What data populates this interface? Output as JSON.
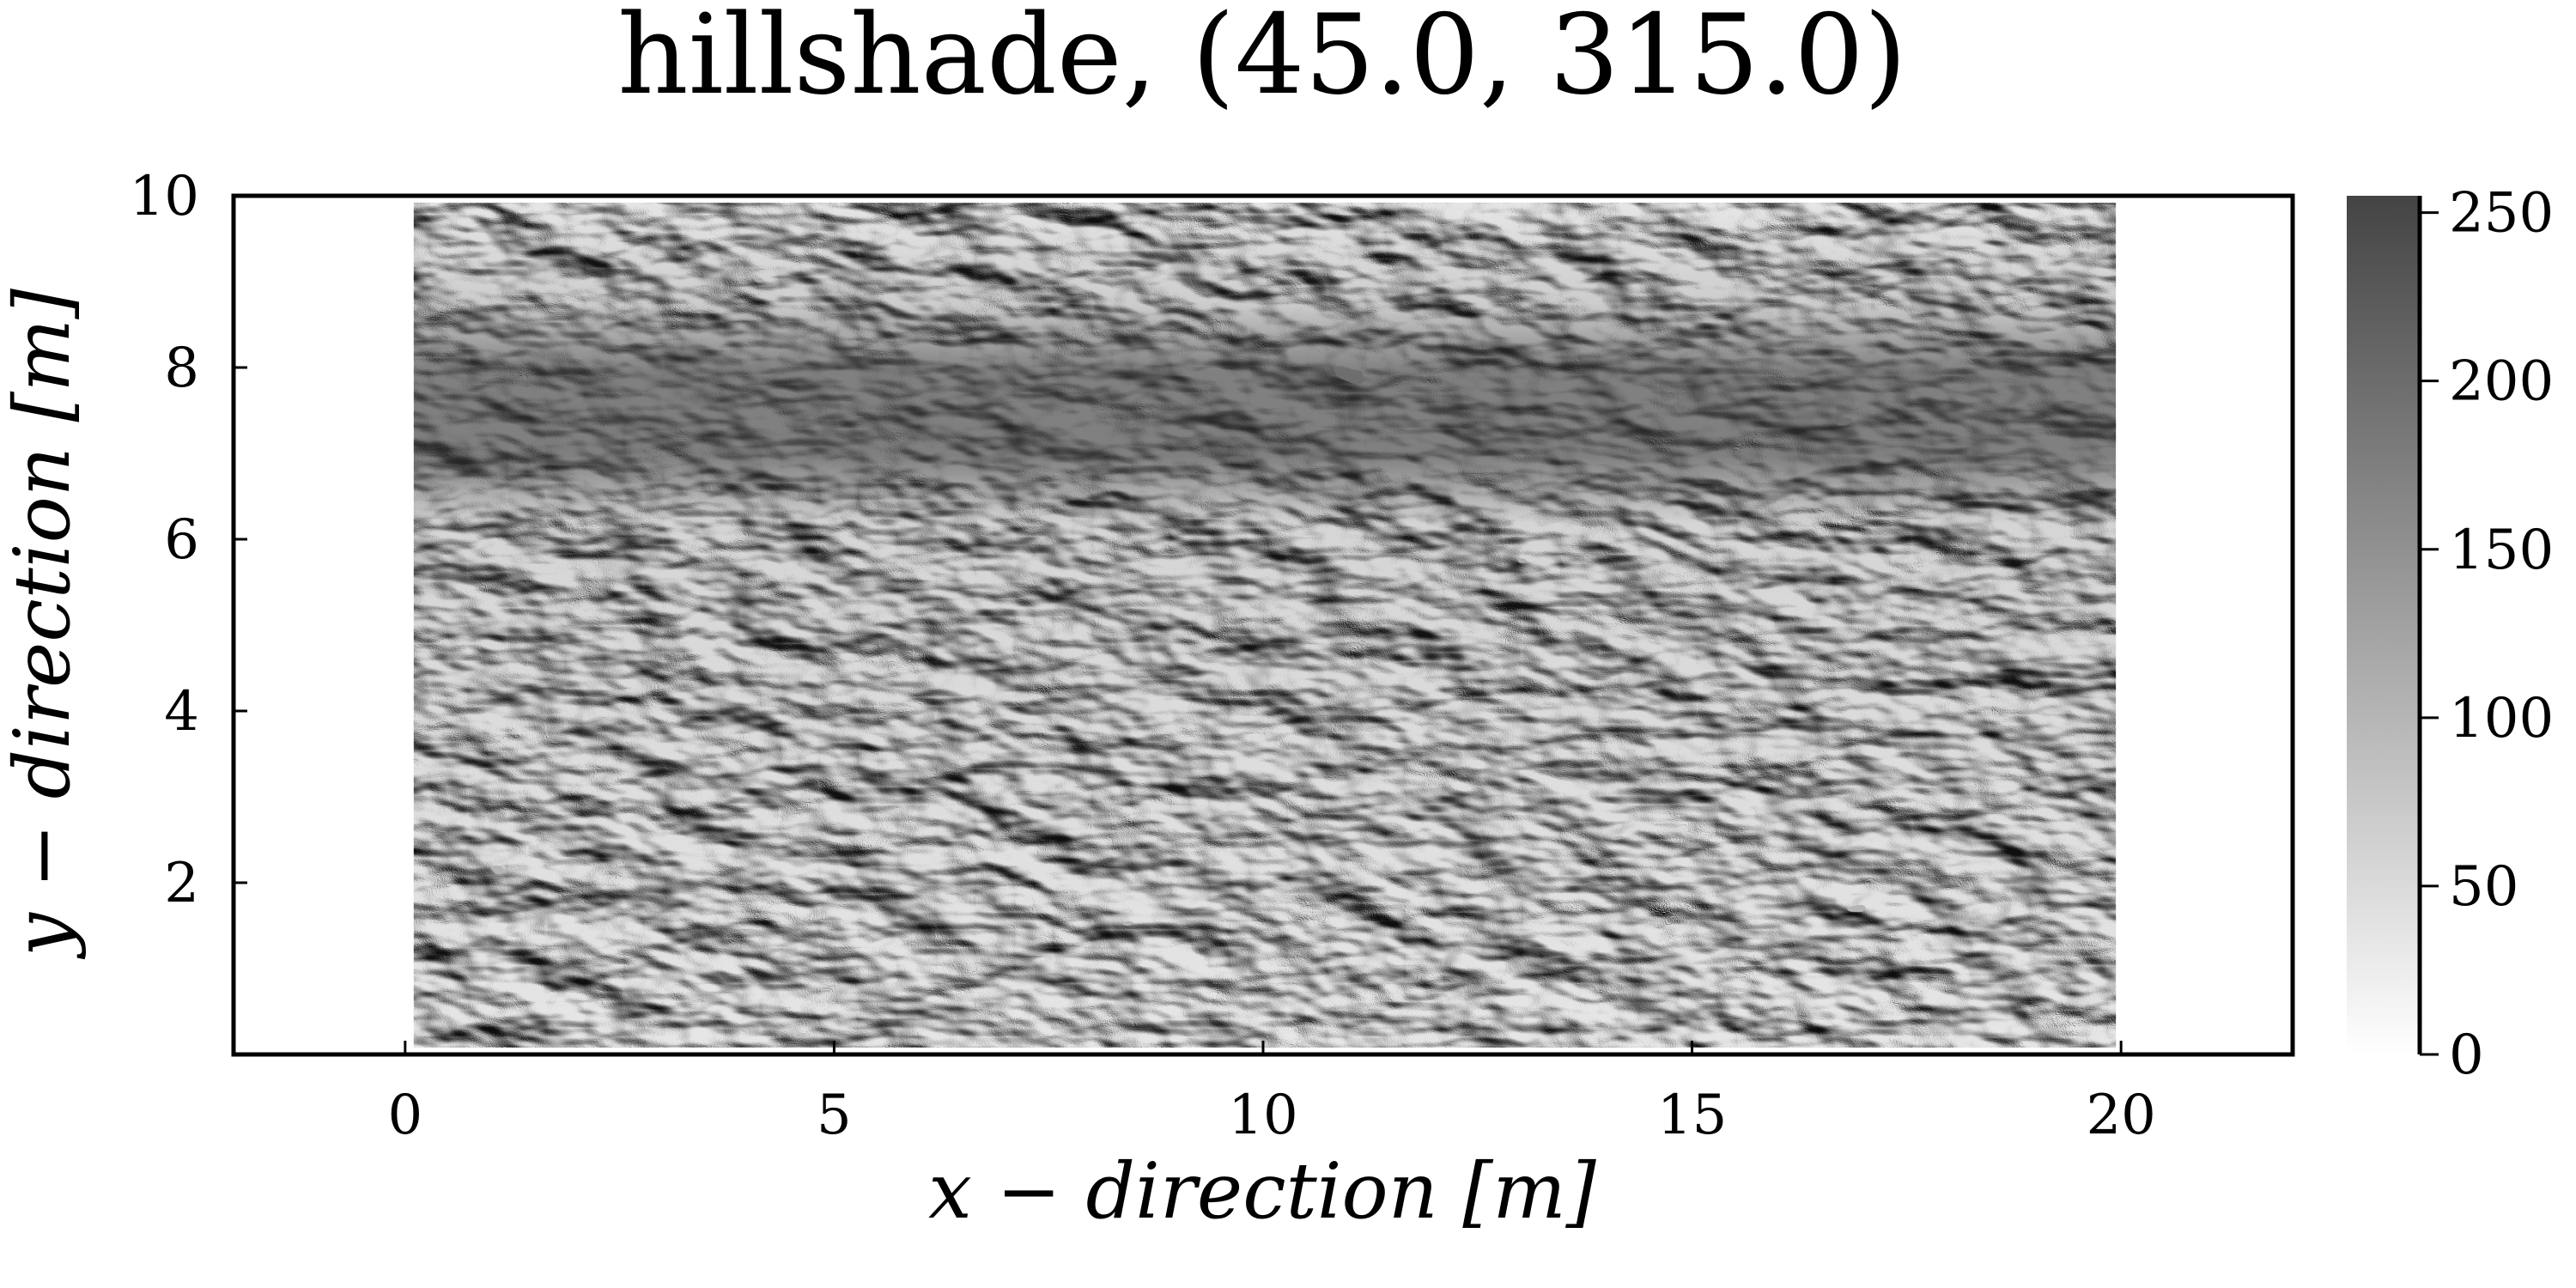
{
  "chart_data": {
    "type": "heatmap",
    "title": "hillshade, (45.0, 315.0)",
    "xlabel": "x − direction [m]",
    "ylabel": "y − direction [m]",
    "xlim": [
      -2,
      22
    ],
    "ylim": [
      0,
      10
    ],
    "data_extent": {
      "x": [
        0,
        20
      ],
      "y": [
        0,
        10
      ]
    },
    "x_ticks": [
      0,
      5,
      10,
      15,
      20
    ],
    "x_tick_labels": [
      "0",
      "5",
      "10",
      "15",
      "20"
    ],
    "y_ticks": [
      2,
      4,
      6,
      8,
      10
    ],
    "y_tick_labels": [
      "2",
      "4",
      "6",
      "8",
      "10"
    ],
    "colorbar": {
      "range": [
        0,
        255
      ],
      "ticks": [
        0,
        50,
        100,
        150,
        200,
        250
      ],
      "tick_labels": [
        "0",
        "50",
        "100",
        "150",
        "200",
        "250"
      ],
      "color_low": "#ffffff",
      "color_high": "#444444"
    },
    "grid": false,
    "texture": "hillshade relief of a rippled surface with darker smooth band near y ≈ 7–8.5"
  },
  "colors": {
    "frame": "#000000",
    "background": "#ffffff"
  }
}
